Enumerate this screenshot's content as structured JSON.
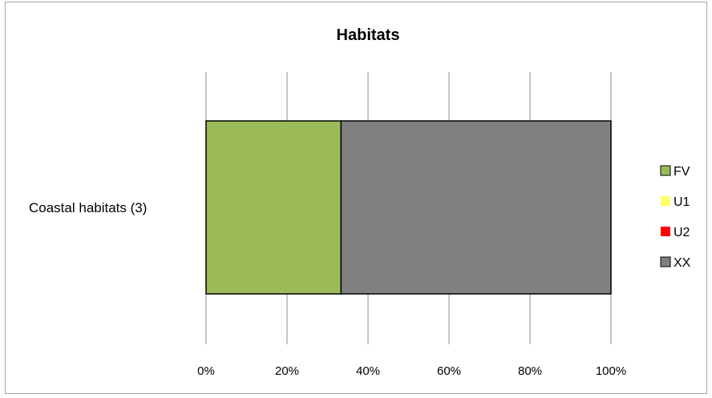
{
  "chart_data": {
    "type": "bar",
    "orientation": "horizontal",
    "stacked": true,
    "percent_stacked": true,
    "title": "Habitats",
    "categories": [
      "Coastal habitats (3)"
    ],
    "series": [
      {
        "name": "FV",
        "values": [
          1
        ],
        "color": "#9bbb59"
      },
      {
        "name": "U1",
        "values": [
          0
        ],
        "color": "#ffff66"
      },
      {
        "name": "U2",
        "values": [
          0
        ],
        "color": "#ff0000"
      },
      {
        "name": "XX",
        "values": [
          2
        ],
        "color": "#808080"
      }
    ],
    "xlim": [
      0,
      100
    ],
    "x_ticks": [
      "0%",
      "20%",
      "40%",
      "60%",
      "80%",
      "100%"
    ],
    "grid": "vertical",
    "legend_position": "right"
  }
}
